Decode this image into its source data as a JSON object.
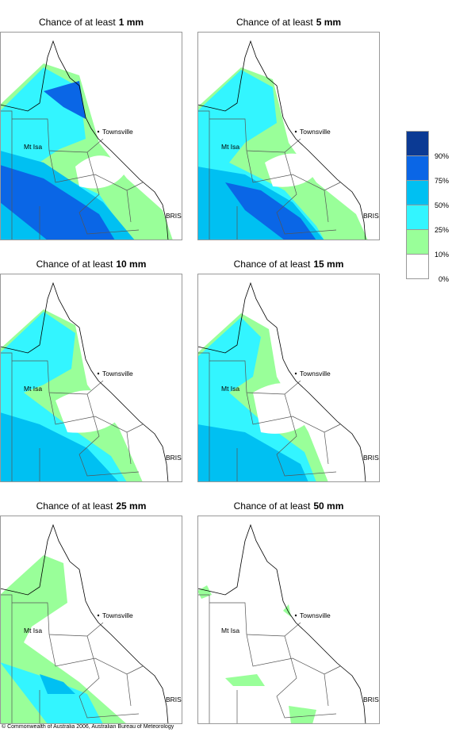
{
  "panels": [
    {
      "title_prefix": "Chance of at least",
      "threshold": "1 mm"
    },
    {
      "title_prefix": "Chance of at least",
      "threshold": "5 mm"
    },
    {
      "title_prefix": "Chance of at least",
      "threshold": "10 mm"
    },
    {
      "title_prefix": "Chance of at least",
      "threshold": "15 mm"
    },
    {
      "title_prefix": "Chance of at least",
      "threshold": "25 mm"
    },
    {
      "title_prefix": "Chance of at least",
      "threshold": "50 mm"
    }
  ],
  "towns": {
    "townsville": "Townsville",
    "mt_isa": "Mt Isa",
    "bris": "BRIS"
  },
  "legend": [
    "90%",
    "75%",
    "50%",
    "25%",
    "10%",
    "0%"
  ],
  "copyright": "© Commonwealth of Australia 2006, Australian Bureau of Meteorology"
}
